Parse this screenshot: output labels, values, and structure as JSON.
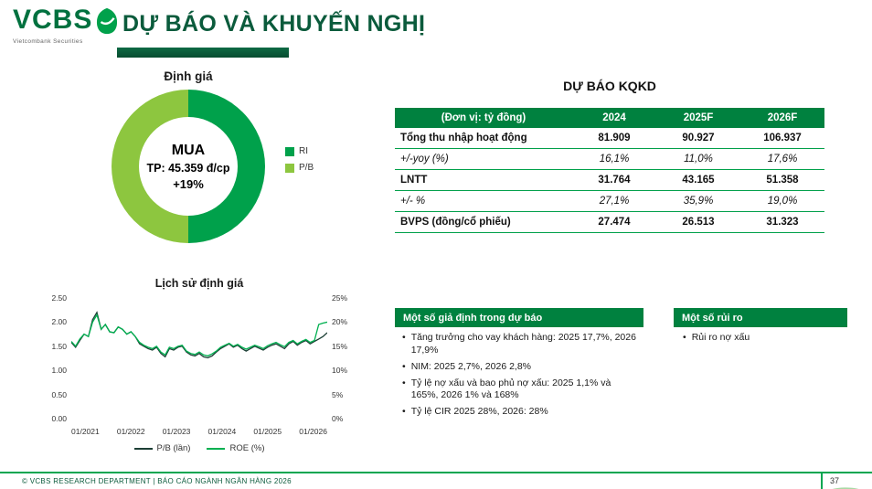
{
  "colors": {
    "brand_green": "#00713F",
    "title_green": "#0B5B3C",
    "section_bar_green": "#00813F",
    "separator_green": "#00A04A",
    "footer_line_green": "#00A651"
  },
  "header": {
    "logo_text": "VCBS",
    "logo_subtitle": "Vietcombank Securities",
    "title": "DỰ BÁO VÀ KHUYẾN NGHỊ"
  },
  "valuation": {
    "heading": "Định giá",
    "recommendation": "MUA",
    "target_price": "TP: 45.359 đ/cp",
    "upside": "+19%",
    "legend": [
      {
        "label": "RI",
        "color": "#00A14B"
      },
      {
        "label": "P/B",
        "color": "#8DC63F"
      }
    ]
  },
  "forecast": {
    "heading": "DỰ BÁO KQKD",
    "columns": [
      "(Đơn vị: tỷ đồng)",
      "2024",
      "2025F",
      "2026F"
    ],
    "rows": [
      {
        "label": "Tổng thu nhập hoạt động",
        "values": [
          "81.909",
          "90.927",
          "106.937"
        ],
        "style": "bold"
      },
      {
        "label": "+/-yoy (%)",
        "values": [
          "16,1%",
          "11,0%",
          "17,6%"
        ],
        "style": "italic"
      },
      {
        "label": "LNTT",
        "values": [
          "31.764",
          "43.165",
          "51.358"
        ],
        "style": "bold"
      },
      {
        "label": "+/- %",
        "values": [
          "27,1%",
          "35,9%",
          "19,0%"
        ],
        "style": "italic"
      },
      {
        "label": "BVPS (đồng/cổ phiếu)",
        "values": [
          "27.474",
          "26.513",
          "31.323"
        ],
        "style": "bold"
      }
    ]
  },
  "assumptions": {
    "heading": "Một số giả định trong dự báo",
    "items": [
      "Tăng trưởng cho vay khách hàng: 2025 17,7%, 2026 17,9%",
      "NIM: 2025 2,7%, 2026 2,8%",
      "Tỷ lệ nợ xấu và bao phủ nợ xấu: 2025 1,1% và 165%, 2026 1% và 168%",
      "Tỷ lệ CIR 2025 28%, 2026: 28%"
    ]
  },
  "risks": {
    "heading": "Một số rủi ro",
    "items": [
      "Rủi ro nợ xấu"
    ]
  },
  "footer": {
    "text": "© VCBS RESEARCH DEPARTMENT | BÁO CÁO NGÀNH NGÂN HÀNG 2026",
    "page_number": "37"
  },
  "chart_data": [
    {
      "type": "pie",
      "donut": true,
      "title": "Định giá",
      "slices": [
        {
          "label": "RI",
          "value": 50,
          "color": "#00A14B"
        },
        {
          "label": "P/B",
          "value": 50,
          "color": "#8DC63F"
        }
      ],
      "center_text": [
        "MUA",
        "TP: 45.359 đ/cp",
        "+19%"
      ],
      "legend_position": "right"
    },
    {
      "type": "line",
      "title": "Lịch sử định giá",
      "grid": false,
      "legend_position": "bottom",
      "x_ticks": [
        "01/2021",
        "01/2022",
        "01/2023",
        "01/2024",
        "01/2025",
        "01/2026"
      ],
      "left_axis": {
        "label": "P/B (lần)",
        "ticks": [
          "0.00",
          "0.50",
          "1.00",
          "1.50",
          "2.00",
          "2.50"
        ],
        "range": [
          0,
          2.5
        ]
      },
      "right_axis": {
        "label": "ROE (%)",
        "ticks": [
          "0%",
          "5%",
          "10%",
          "15%",
          "20%",
          "25%"
        ],
        "range": [
          0,
          25
        ]
      },
      "series": [
        {
          "name": "P/B (lần)",
          "axis": "left",
          "color": "#1C3F35",
          "values": [
            1.58,
            1.48,
            1.62,
            1.75,
            1.7,
            2.05,
            2.2,
            1.85,
            1.95,
            1.8,
            1.78,
            1.9,
            1.85,
            1.75,
            1.8,
            1.7,
            1.55,
            1.5,
            1.45,
            1.42,
            1.48,
            1.35,
            1.28,
            1.45,
            1.42,
            1.48,
            1.5,
            1.38,
            1.32,
            1.3,
            1.35,
            1.28,
            1.26,
            1.3,
            1.38,
            1.45,
            1.5,
            1.55,
            1.48,
            1.52,
            1.45,
            1.4,
            1.45,
            1.5,
            1.46,
            1.42,
            1.48,
            1.52,
            1.55,
            1.5,
            1.45,
            1.55,
            1.6,
            1.52,
            1.58,
            1.62,
            1.55,
            1.6,
            1.65,
            1.7,
            1.78
          ]
        },
        {
          "name": "ROE (%)",
          "axis": "right",
          "color": "#00B050",
          "values": [
            16.0,
            15.0,
            16.5,
            17.5,
            17.0,
            20.0,
            21.5,
            18.5,
            19.5,
            18.0,
            17.8,
            19.0,
            18.5,
            17.5,
            18.0,
            17.0,
            15.8,
            15.2,
            14.8,
            14.5,
            15.0,
            13.8,
            13.2,
            14.8,
            14.5,
            15.0,
            15.2,
            14.0,
            13.5,
            13.3,
            13.8,
            13.2,
            13.0,
            13.4,
            14.0,
            14.8,
            15.2,
            15.6,
            15.0,
            15.4,
            14.8,
            14.4,
            14.8,
            15.2,
            14.9,
            14.5,
            15.1,
            15.5,
            15.8,
            15.3,
            14.9,
            15.8,
            16.2,
            15.5,
            16.0,
            16.4,
            15.8,
            16.2,
            19.5,
            19.8,
            20.0
          ]
        }
      ]
    }
  ]
}
